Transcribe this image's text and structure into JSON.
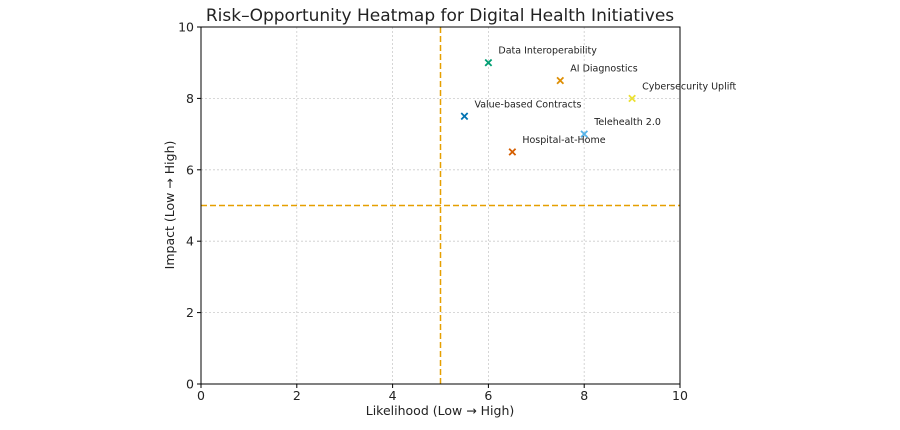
{
  "chart_data": {
    "type": "scatter",
    "title": "Risk–Opportunity Heatmap for Digital Health Initiatives",
    "xlabel": "Likelihood (Low → High)",
    "ylabel": "Impact (Low → High)",
    "xlim": [
      0,
      10
    ],
    "ylim": [
      0,
      10
    ],
    "xticks": [
      0,
      2,
      4,
      6,
      8,
      10
    ],
    "yticks": [
      0,
      2,
      4,
      6,
      8,
      10
    ],
    "grid": true,
    "marker": "x",
    "reference_lines": {
      "x": 5,
      "y": 5,
      "style": "dashed",
      "color": "#e69f00"
    },
    "points": [
      {
        "label": "AI Diagnostics",
        "x": 7.5,
        "y": 8.5,
        "color": "#de8f05"
      },
      {
        "label": "Telehealth 2.0",
        "x": 8,
        "y": 7,
        "color": "#56b4e9"
      },
      {
        "label": "Data Interoperability",
        "x": 6,
        "y": 9,
        "color": "#029e73"
      },
      {
        "label": "Cybersecurity Uplift",
        "x": 9,
        "y": 8,
        "color": "#ece133"
      },
      {
        "label": "Value-based Contracts",
        "x": 5.5,
        "y": 7.5,
        "color": "#0173b2"
      },
      {
        "label": "Hospital-at-Home",
        "x": 6.5,
        "y": 6.5,
        "color": "#d55e00"
      }
    ]
  }
}
